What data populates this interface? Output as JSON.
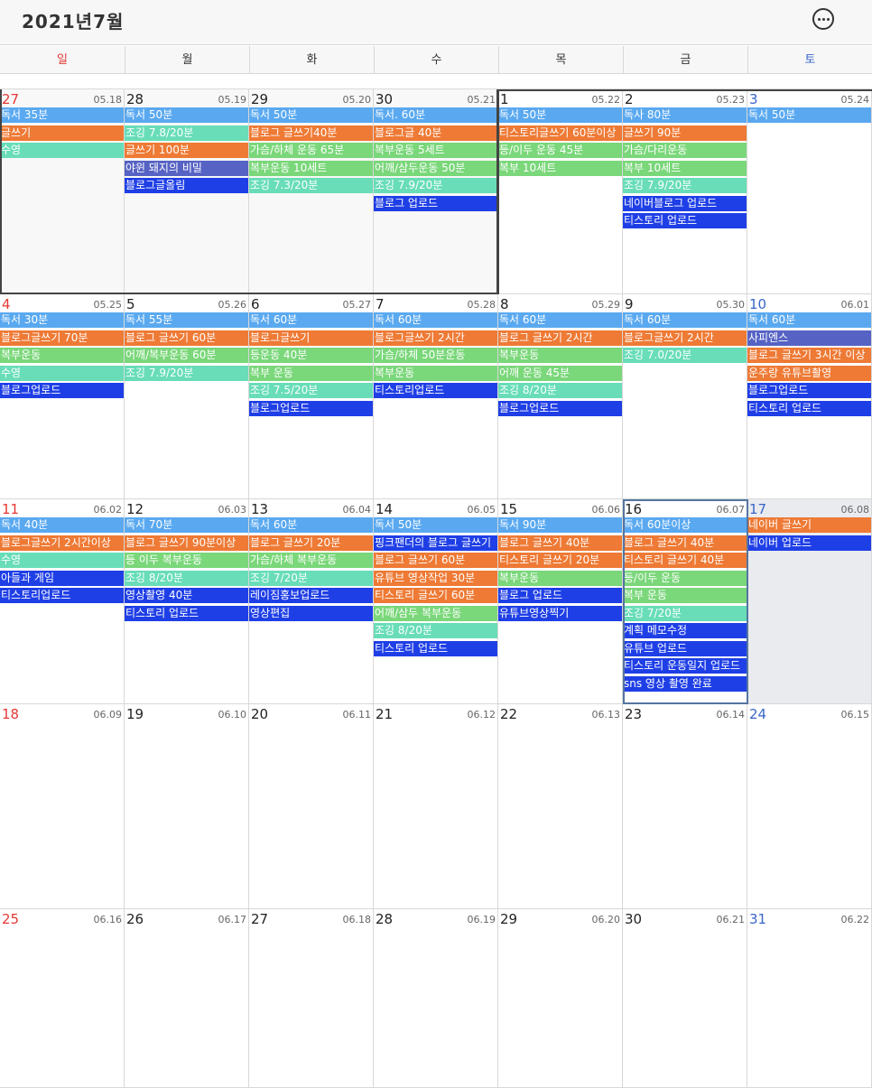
{
  "header": {
    "title": "2021년7월",
    "menu_icon": "more-icon"
  },
  "weekdays": [
    "일",
    "월",
    "화",
    "수",
    "목",
    "금",
    "토"
  ],
  "colors": {
    "reading": "#5aa9f0",
    "writing": "#ee7a35",
    "exercise": "#7ad77a",
    "jogging": "#68ddb8",
    "upload": "#1f3fe6",
    "other": "#5663c4",
    "sunday": "#e53935",
    "saturday": "#3a66c8"
  },
  "weeks": [
    [
      {
        "day": "27",
        "lunar": "05.18",
        "prev": true,
        "events": [
          {
            "t": "독서 35분",
            "c": "reading"
          },
          {
            "t": "글쓰기",
            "c": "writing"
          },
          {
            "t": "수영",
            "c": "jogging"
          }
        ]
      },
      {
        "day": "28",
        "lunar": "05.19",
        "prev": true,
        "events": [
          {
            "t": "독서 50분",
            "c": "reading"
          },
          {
            "t": "조깅 7.8/20분",
            "c": "jogging"
          },
          {
            "t": "글쓰기 100분",
            "c": "writing"
          },
          {
            "t": "야윈 돼지의 비밀",
            "c": "other"
          },
          {
            "t": "블로그글올림",
            "c": "upload"
          }
        ]
      },
      {
        "day": "29",
        "lunar": "05.20",
        "prev": true,
        "events": [
          {
            "t": "독서 50분",
            "c": "reading"
          },
          {
            "t": "블로그 글쓰기40분",
            "c": "writing"
          },
          {
            "t": "가슴/하체 운동 65분",
            "c": "exercise"
          },
          {
            "t": "복부운동 10세트",
            "c": "exercise"
          },
          {
            "t": "조깅 7.3/20분",
            "c": "jogging"
          }
        ]
      },
      {
        "day": "30",
        "lunar": "05.21",
        "prev": true,
        "events": [
          {
            "t": "독서. 60분",
            "c": "reading"
          },
          {
            "t": "블로그글 40분",
            "c": "writing"
          },
          {
            "t": "복부운동 5세트",
            "c": "exercise"
          },
          {
            "t": "어깨/삼두운동 50분",
            "c": "exercise"
          },
          {
            "t": "조깅 7.9/20분",
            "c": "jogging"
          },
          {
            "t": "블로그 업로드",
            "c": "upload"
          }
        ]
      },
      {
        "day": "1",
        "lunar": "05.22",
        "events": [
          {
            "t": "독서 50분",
            "c": "reading"
          },
          {
            "t": "티스토리글쓰기 60분이상",
            "c": "writing"
          },
          {
            "t": "등/이두 운동 45분",
            "c": "exercise"
          },
          {
            "t": "복부 10세트",
            "c": "exercise"
          }
        ]
      },
      {
        "day": "2",
        "lunar": "05.23",
        "events": [
          {
            "t": "독사 80분",
            "c": "reading"
          },
          {
            "t": "글쓰기 90분",
            "c": "writing"
          },
          {
            "t": "가슴/다리운동",
            "c": "exercise"
          },
          {
            "t": "복부 10세트",
            "c": "exercise"
          },
          {
            "t": "조깅 7.9/20분",
            "c": "jogging"
          },
          {
            "t": "네이버블로그 업로드",
            "c": "upload"
          },
          {
            "t": "티스토리 업로드",
            "c": "upload"
          }
        ]
      },
      {
        "day": "3",
        "lunar": "05.24",
        "events": [
          {
            "t": "독서 50분",
            "c": "reading"
          }
        ]
      }
    ],
    [
      {
        "day": "4",
        "lunar": "05.25",
        "events": [
          {
            "t": "독서 30분",
            "c": "reading"
          },
          {
            "t": "블로그글쓰기 70분",
            "c": "writing"
          },
          {
            "t": "복부운동",
            "c": "exercise"
          },
          {
            "t": "수영",
            "c": "jogging"
          },
          {
            "t": "블로그업로드",
            "c": "upload"
          }
        ]
      },
      {
        "day": "5",
        "lunar": "05.26",
        "events": [
          {
            "t": "독서 55분",
            "c": "reading"
          },
          {
            "t": "블로그 글쓰기 60분",
            "c": "writing"
          },
          {
            "t": "어깨/복부운동 60분",
            "c": "exercise"
          },
          {
            "t": "조깅 7.9/20분",
            "c": "jogging"
          }
        ]
      },
      {
        "day": "6",
        "lunar": "05.27",
        "events": [
          {
            "t": "독서 60분",
            "c": "reading"
          },
          {
            "t": "블로그글쓰기",
            "c": "writing"
          },
          {
            "t": "등운동 40분",
            "c": "exercise"
          },
          {
            "t": "복부 운동",
            "c": "exercise"
          },
          {
            "t": "조깅 7.5/20분",
            "c": "jogging"
          },
          {
            "t": "블로그업로드",
            "c": "upload"
          }
        ]
      },
      {
        "day": "7",
        "lunar": "05.28",
        "events": [
          {
            "t": "독서 60분",
            "c": "reading"
          },
          {
            "t": "블로그글쓰기 2시간",
            "c": "writing"
          },
          {
            "t": "가슴/하체 50분운동",
            "c": "exercise"
          },
          {
            "t": "복부운동",
            "c": "exercise"
          },
          {
            "t": "티스토리업로드",
            "c": "upload"
          }
        ]
      },
      {
        "day": "8",
        "lunar": "05.29",
        "events": [
          {
            "t": "독서 60분",
            "c": "reading"
          },
          {
            "t": "블로그 글쓰기 2시간",
            "c": "writing"
          },
          {
            "t": "복부운동",
            "c": "exercise"
          },
          {
            "t": "어깨 운동 45분",
            "c": "exercise"
          },
          {
            "t": "조깅 8/20분",
            "c": "jogging"
          },
          {
            "t": "블로그업로드",
            "c": "upload"
          }
        ]
      },
      {
        "day": "9",
        "lunar": "05.30",
        "events": [
          {
            "t": "독서 60분",
            "c": "reading"
          },
          {
            "t": "블로그글쓰기 2시간",
            "c": "writing"
          },
          {
            "t": "조깅 7.0/20분",
            "c": "jogging"
          }
        ]
      },
      {
        "day": "10",
        "lunar": "06.01",
        "events": [
          {
            "t": "독서 60분",
            "c": "reading"
          },
          {
            "t": "사피엔스",
            "c": "other"
          },
          {
            "t": "블로그 글쓰기 3시간 이상",
            "c": "writing"
          },
          {
            "t": "운주랑 유튜브촬영",
            "c": "writing"
          },
          {
            "t": "블로그업로드",
            "c": "upload"
          },
          {
            "t": "티스토리 업로드",
            "c": "upload"
          }
        ]
      }
    ],
    [
      {
        "day": "11",
        "lunar": "06.02",
        "events": [
          {
            "t": "독서 40분",
            "c": "reading"
          },
          {
            "t": "블로그글쓰기 2시간이상",
            "c": "writing"
          },
          {
            "t": "수영",
            "c": "jogging"
          },
          {
            "t": "아들과 게임",
            "c": "upload"
          },
          {
            "t": "티스토리업로드",
            "c": "upload"
          }
        ]
      },
      {
        "day": "12",
        "lunar": "06.03",
        "events": [
          {
            "t": "독서 70분",
            "c": "reading"
          },
          {
            "t": "블로그 글쓰기 90분이상",
            "c": "writing"
          },
          {
            "t": "등 이두 복부운동",
            "c": "exercise"
          },
          {
            "t": "조깅 8/20분",
            "c": "jogging"
          },
          {
            "t": "영상촬영 40분",
            "c": "upload"
          },
          {
            "t": "티스토리 업로드",
            "c": "upload"
          }
        ]
      },
      {
        "day": "13",
        "lunar": "06.04",
        "events": [
          {
            "t": "독서 60분",
            "c": "reading"
          },
          {
            "t": "블로그 글쓰기 20분",
            "c": "writing"
          },
          {
            "t": "가슴/하체 복부운동",
            "c": "exercise"
          },
          {
            "t": "조깅 7/20분",
            "c": "jogging"
          },
          {
            "t": "레이짐홍보업로드",
            "c": "upload"
          },
          {
            "t": "영상편집",
            "c": "upload"
          }
        ]
      },
      {
        "day": "14",
        "lunar": "06.05",
        "events": [
          {
            "t": "독서 50분",
            "c": "reading"
          },
          {
            "t": "핑크팬더의 블로그 글쓰기",
            "c": "upload"
          },
          {
            "t": "블로그 글쓰기 60분",
            "c": "writing"
          },
          {
            "t": "유튜브 영상작업 30분",
            "c": "writing"
          },
          {
            "t": "티스토리 글쓰기 60분",
            "c": "writing"
          },
          {
            "t": "어깨/삼두 복부운동",
            "c": "exercise"
          },
          {
            "t": "조깅 8/20분",
            "c": "jogging"
          },
          {
            "t": "티스토리 업로드",
            "c": "upload"
          }
        ]
      },
      {
        "day": "15",
        "lunar": "06.06",
        "events": [
          {
            "t": "독서 90분",
            "c": "reading"
          },
          {
            "t": "블로그 글쓰기 40분",
            "c": "writing"
          },
          {
            "t": "티스토리 글쓰기 20분",
            "c": "writing"
          },
          {
            "t": "복부운동",
            "c": "exercise"
          },
          {
            "t": "블로그 업로드",
            "c": "upload"
          },
          {
            "t": "유튜브영상찍기",
            "c": "upload"
          }
        ]
      },
      {
        "day": "16",
        "lunar": "06.07",
        "events": [
          {
            "t": "독서 60분이상",
            "c": "reading"
          },
          {
            "t": "블로그 글쓰기 40분",
            "c": "writing"
          },
          {
            "t": "티스토리 글쓰기 40분",
            "c": "writing"
          },
          {
            "t": "등/이두 운동",
            "c": "exercise"
          },
          {
            "t": "복부 운동",
            "c": "exercise"
          },
          {
            "t": "조깅 7/20분",
            "c": "jogging"
          },
          {
            "t": "계획 메모수정",
            "c": "upload"
          },
          {
            "t": "유튜브 업로드",
            "c": "upload"
          },
          {
            "t": "티스토리 운동일지 업로드",
            "c": "upload"
          },
          {
            "t": "sns 영상 촬영 완료",
            "c": "upload"
          }
        ]
      },
      {
        "day": "17",
        "lunar": "06.08",
        "today": true,
        "events": [
          {
            "t": "네이버 글쓰기",
            "c": "writing"
          },
          {
            "t": "네이버 업로드",
            "c": "upload"
          }
        ]
      }
    ],
    [
      {
        "day": "18",
        "lunar": "06.09",
        "events": []
      },
      {
        "day": "19",
        "lunar": "06.10",
        "events": []
      },
      {
        "day": "20",
        "lunar": "06.11",
        "events": []
      },
      {
        "day": "21",
        "lunar": "06.12",
        "events": []
      },
      {
        "day": "22",
        "lunar": "06.13",
        "events": []
      },
      {
        "day": "23",
        "lunar": "06.14",
        "events": []
      },
      {
        "day": "24",
        "lunar": "06.15",
        "events": []
      }
    ],
    [
      {
        "day": "25",
        "lunar": "06.16",
        "events": []
      },
      {
        "day": "26",
        "lunar": "06.17",
        "events": []
      },
      {
        "day": "27",
        "lunar": "06.18",
        "events": []
      },
      {
        "day": "28",
        "lunar": "06.19",
        "events": []
      },
      {
        "day": "29",
        "lunar": "06.20",
        "events": []
      },
      {
        "day": "30",
        "lunar": "06.21",
        "events": []
      },
      {
        "day": "31",
        "lunar": "06.22",
        "events": []
      }
    ]
  ]
}
